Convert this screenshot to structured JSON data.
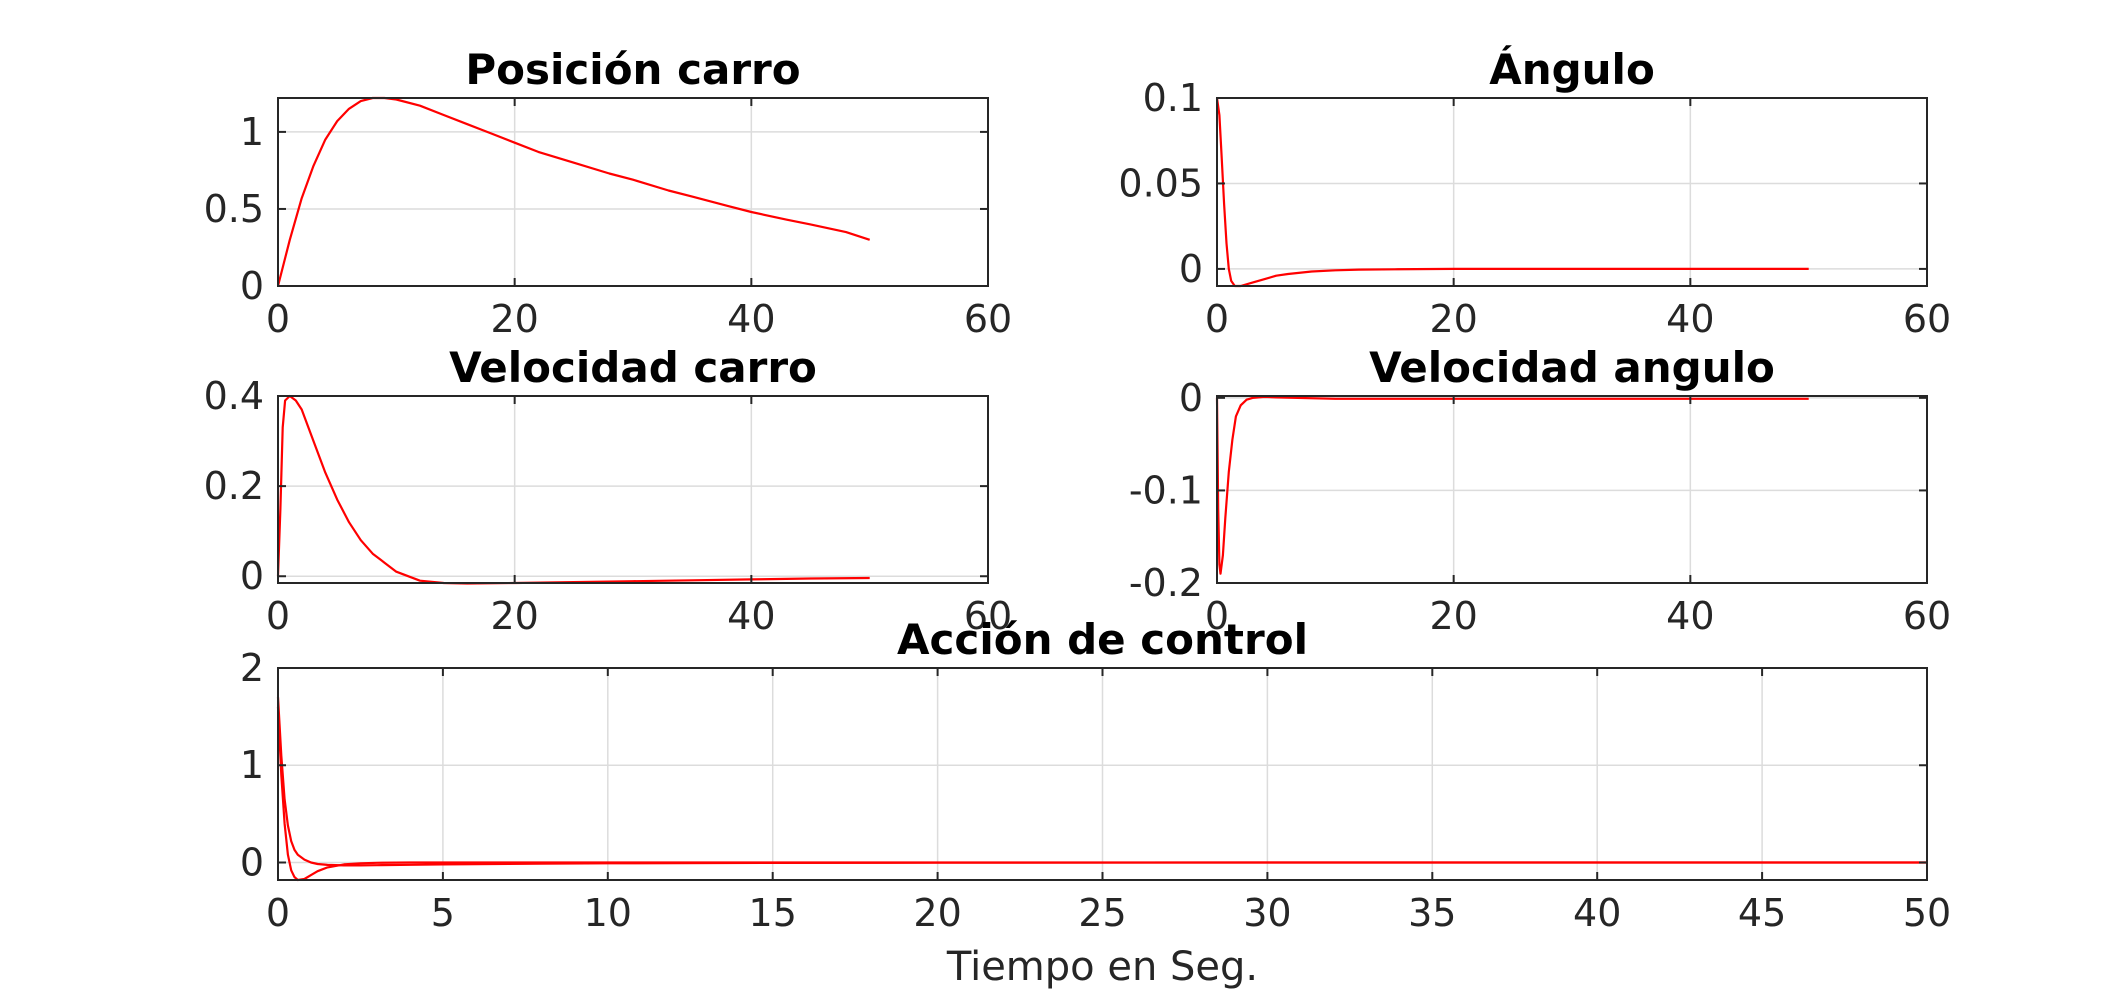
{
  "figure": {
    "line_color": "#ff0000",
    "grid": true
  },
  "chart_data": [
    {
      "type": "line",
      "title": "Posición carro",
      "xlabel": "",
      "ylabel": "",
      "xlim": [
        0,
        60
      ],
      "ylim": [
        0,
        1.22
      ],
      "xticks": [
        0,
        20,
        40,
        60
      ],
      "xtick_labels": [
        "0",
        "20",
        "40",
        "60"
      ],
      "yticks": [
        0,
        0.5,
        1
      ],
      "ytick_labels": [
        "0",
        "0.5",
        "1"
      ],
      "series": [
        {
          "x": [
            0,
            0.5,
            1,
            2,
            3,
            4,
            5,
            6,
            7,
            8,
            9,
            10,
            12,
            14,
            16,
            18,
            20,
            22,
            25,
            28,
            30,
            33,
            35,
            38,
            40,
            43,
            45,
            48,
            50
          ],
          "y": [
            0,
            0.15,
            0.3,
            0.57,
            0.78,
            0.95,
            1.07,
            1.15,
            1.2,
            1.22,
            1.22,
            1.21,
            1.17,
            1.11,
            1.05,
            0.99,
            0.93,
            0.87,
            0.8,
            0.73,
            0.69,
            0.62,
            0.58,
            0.52,
            0.48,
            0.43,
            0.4,
            0.35,
            0.3
          ]
        }
      ]
    },
    {
      "type": "line",
      "title": "Ángulo",
      "xlabel": "",
      "ylabel": "",
      "xlim": [
        0,
        60
      ],
      "ylim": [
        -0.01,
        0.1
      ],
      "xticks": [
        0,
        20,
        40,
        60
      ],
      "xtick_labels": [
        "0",
        "20",
        "40",
        "60"
      ],
      "yticks": [
        0,
        0.05,
        0.1
      ],
      "ytick_labels": [
        "0",
        "0.05",
        "0.1"
      ],
      "series": [
        {
          "x": [
            0,
            0.2,
            0.4,
            0.6,
            0.8,
            1.0,
            1.2,
            1.5,
            2,
            3,
            4,
            5,
            6,
            8,
            10,
            12,
            15,
            20,
            30,
            40,
            50
          ],
          "y": [
            0.1,
            0.09,
            0.065,
            0.038,
            0.015,
            0.0,
            -0.007,
            -0.01,
            -0.01,
            -0.008,
            -0.006,
            -0.004,
            -0.003,
            -0.0015,
            -0.0008,
            -0.0004,
            -0.0002,
            0.0,
            0.0,
            0.0,
            0.0
          ]
        }
      ]
    },
    {
      "type": "line",
      "title": "Velocidad carro",
      "xlabel": "",
      "ylabel": "",
      "xlim": [
        0,
        60
      ],
      "ylim": [
        -0.015,
        0.4
      ],
      "xticks": [
        0,
        20,
        40,
        60
      ],
      "xtick_labels": [
        "0",
        "20",
        "40",
        "60"
      ],
      "yticks": [
        0,
        0.2,
        0.4
      ],
      "ytick_labels": [
        "0",
        "0.2",
        "0.4"
      ],
      "series": [
        {
          "x": [
            0,
            0.2,
            0.4,
            0.6,
            1,
            1.5,
            2,
            3,
            4,
            5,
            6,
            7,
            8,
            9,
            10,
            12,
            14,
            16,
            20,
            25,
            30,
            35,
            40,
            45,
            50
          ],
          "y": [
            0.0,
            0.15,
            0.33,
            0.39,
            0.4,
            0.39,
            0.37,
            0.3,
            0.23,
            0.17,
            0.12,
            0.08,
            0.05,
            0.03,
            0.01,
            -0.01,
            -0.015,
            -0.016,
            -0.015,
            -0.013,
            -0.011,
            -0.009,
            -0.007,
            -0.005,
            -0.004
          ]
        }
      ]
    },
    {
      "type": "line",
      "title": "Velocidad angulo",
      "xlabel": "",
      "ylabel": "",
      "xlim": [
        0,
        60
      ],
      "ylim": [
        -0.2,
        0.002
      ],
      "xticks": [
        0,
        20,
        40,
        60
      ],
      "xtick_labels": [
        "0",
        "20",
        "40",
        "60"
      ],
      "yticks": [
        -0.2,
        -0.1,
        0
      ],
      "ytick_labels": [
        "-0.2",
        "-0.1",
        "0"
      ],
      "series": [
        {
          "x": [
            0,
            0.1,
            0.2,
            0.3,
            0.5,
            0.7,
            1.0,
            1.3,
            1.6,
            2,
            2.5,
            3,
            4,
            5,
            10,
            20,
            30,
            40,
            50
          ],
          "y": [
            0,
            -0.12,
            -0.18,
            -0.19,
            -0.17,
            -0.13,
            -0.08,
            -0.045,
            -0.02,
            -0.008,
            -0.002,
            0.0,
            0.001,
            0.0005,
            -0.001,
            -0.001,
            -0.001,
            -0.001,
            -0.001
          ]
        }
      ]
    },
    {
      "type": "line",
      "title": "Acción de control",
      "xlabel": "Tiempo en Seg.",
      "ylabel": "",
      "xlim": [
        0,
        50
      ],
      "ylim": [
        -0.18,
        2
      ],
      "xticks": [
        0,
        5,
        10,
        15,
        20,
        25,
        30,
        35,
        40,
        45,
        50
      ],
      "xtick_labels": [
        "0",
        "5",
        "10",
        "15",
        "20",
        "25",
        "30",
        "35",
        "40",
        "45",
        "50"
      ],
      "yticks": [
        0,
        1,
        2
      ],
      "ytick_labels": [
        "0",
        "1",
        "2"
      ],
      "series": [
        {
          "x": [
            0,
            0.1,
            0.2,
            0.3,
            0.4,
            0.5,
            0.6,
            0.8,
            1.0,
            1.2,
            1.5,
            2,
            2.5,
            3,
            4,
            5,
            6,
            8,
            10,
            15,
            20,
            30,
            40,
            50
          ],
          "y": [
            1.7,
            1.1,
            0.65,
            0.38,
            0.22,
            0.13,
            0.08,
            0.03,
            0.0,
            -0.015,
            -0.025,
            -0.03,
            -0.03,
            -0.028,
            -0.024,
            -0.02,
            -0.017,
            -0.012,
            -0.008,
            -0.004,
            -0.002,
            0.0,
            0.0,
            0.0
          ]
        },
        {
          "x": [
            0,
            0.1,
            0.2,
            0.3,
            0.4,
            0.5,
            0.6,
            0.8,
            1.0,
            1.2,
            1.5,
            2,
            2.5,
            3,
            4,
            5,
            6,
            8,
            10,
            15,
            20,
            30,
            40,
            50
          ],
          "y": [
            1.6,
            0.9,
            0.4,
            0.08,
            -0.08,
            -0.15,
            -0.18,
            -0.17,
            -0.13,
            -0.09,
            -0.05,
            -0.02,
            -0.008,
            -0.003,
            0.0,
            0.0,
            0.0,
            0.0,
            0.0,
            0.0,
            0.0,
            0.0,
            0.0,
            0.0
          ]
        }
      ]
    }
  ]
}
